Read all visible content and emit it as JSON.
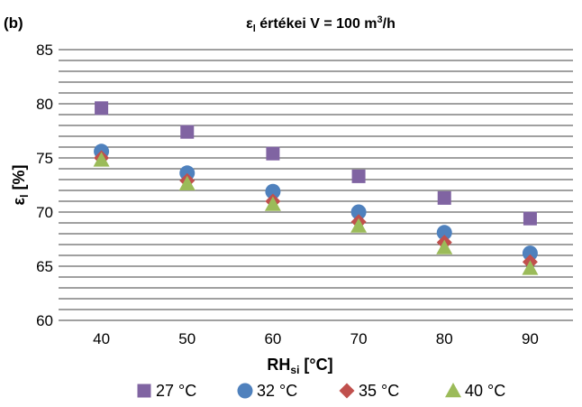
{
  "chart_data": {
    "type": "scatter",
    "panel_label": "(b)",
    "title": {
      "main": "ε",
      "sub": "l",
      "rest": " értékei V = 100 m",
      "sup": "3",
      "tail": "/h"
    },
    "xlabel": {
      "main": "RH",
      "sub": "si",
      "rest": " [°C]"
    },
    "ylabel": {
      "main": "ε",
      "sub": "l",
      "rest": " [%]"
    },
    "categories": [
      "40",
      "50",
      "60",
      "70",
      "80",
      "90"
    ],
    "ylim": [
      60,
      85
    ],
    "yticks": [
      "60",
      "65",
      "70",
      "75",
      "80",
      "85"
    ],
    "grid_step": 1,
    "grid": true,
    "legend_position": "bottom",
    "series": [
      {
        "name": "27 °C",
        "marker": "square",
        "color": "#8064a2",
        "values": [
          79.6,
          77.4,
          75.4,
          73.3,
          71.3,
          69.4
        ]
      },
      {
        "name": "32 °C",
        "marker": "circle",
        "color": "#4f81bd",
        "values": [
          75.6,
          73.6,
          71.9,
          70.0,
          68.1,
          66.2
        ]
      },
      {
        "name": "35 °C",
        "marker": "diamond",
        "color": "#c0504d",
        "values": [
          75.0,
          72.9,
          71.0,
          69.1,
          67.2,
          65.4
        ]
      },
      {
        "name": "40 °C",
        "marker": "triangle",
        "color": "#9bbb59",
        "values": [
          74.8,
          72.6,
          70.7,
          68.7,
          66.7,
          64.8
        ]
      }
    ]
  }
}
